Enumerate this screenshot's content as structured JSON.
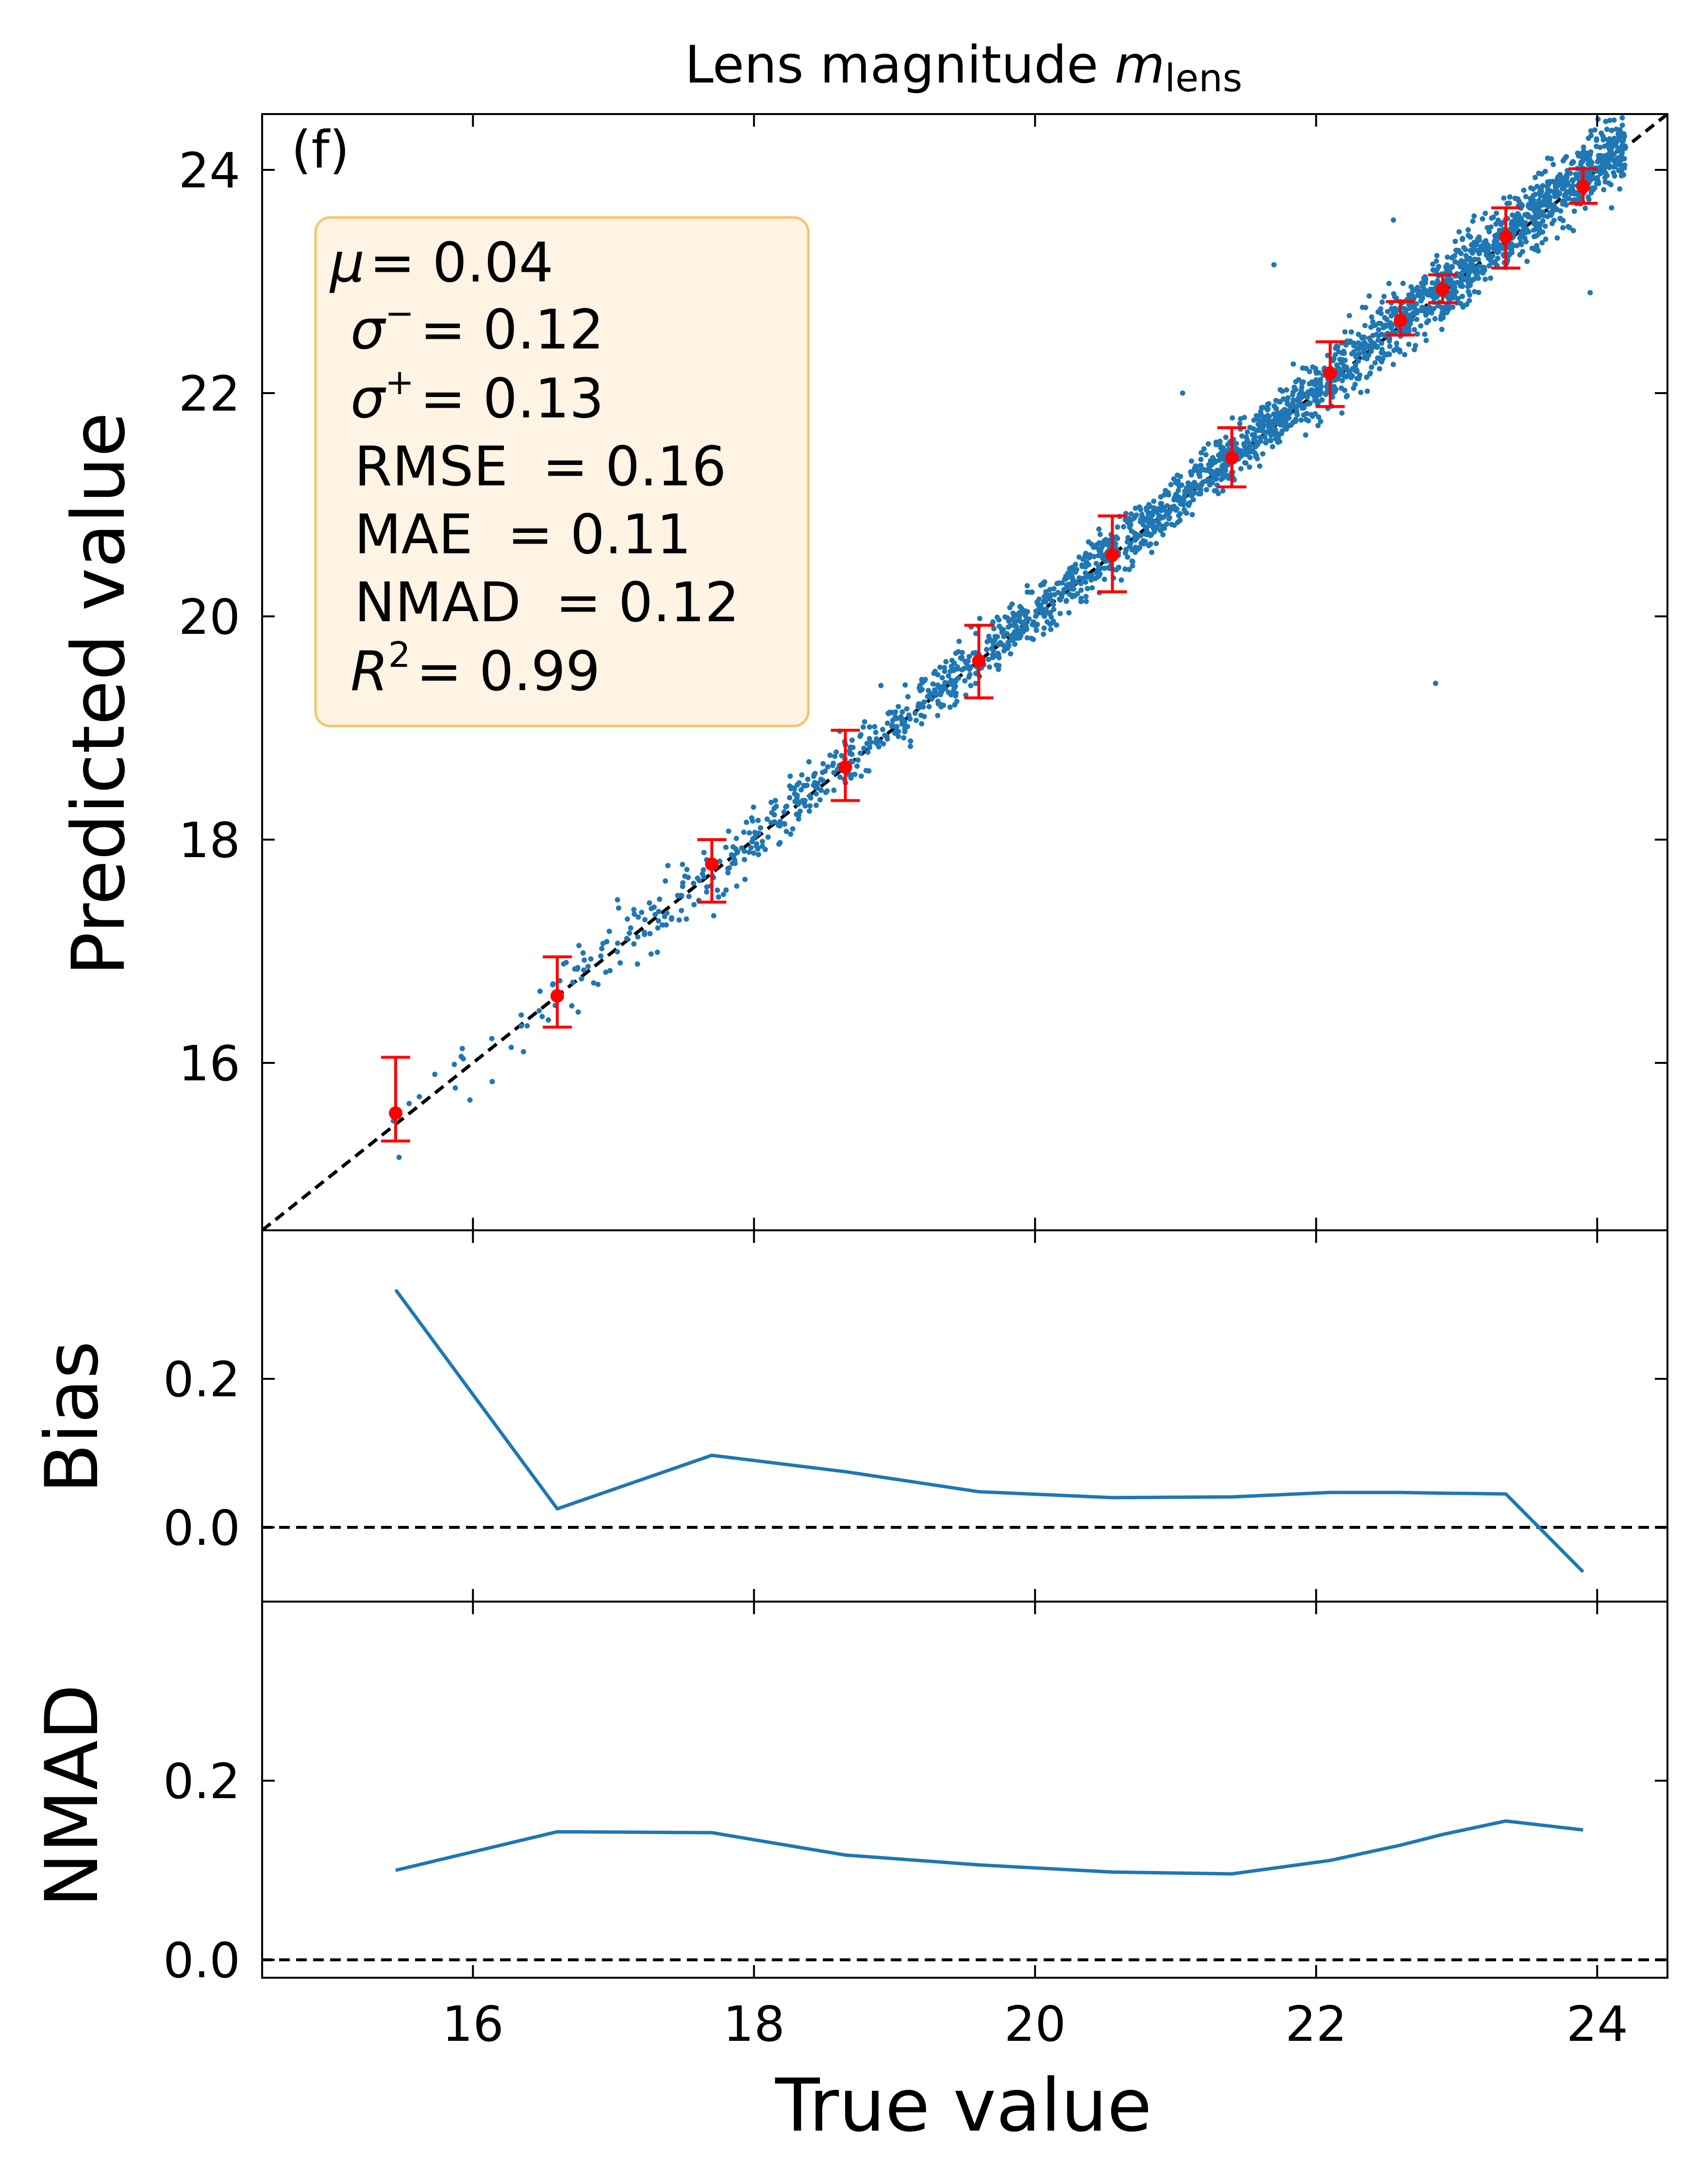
{
  "figure": {
    "title_main": "Lens magnitude ",
    "title_var": "m",
    "title_sub": "lens",
    "panel_tag": "(f)",
    "xlabel": "True value"
  },
  "colors": {
    "scatter": "#1f77b4",
    "binned": "#ff0000",
    "line": "#1f77b4",
    "reference": "#000000",
    "stats_box_fill": "#fff3e3",
    "stats_box_edge": "#f5c46a"
  },
  "stats": {
    "mu_label": "μ",
    "mu_value": "= 0.04",
    "sigma_minus_label": "σ",
    "sigma_minus_sup": "−",
    "sigma_minus_value": "= 0.12",
    "sigma_plus_label": "σ",
    "sigma_plus_sup": "+",
    "sigma_plus_value": "= 0.13",
    "rmse": "RMSE  = 0.16",
    "mae": "MAE  = 0.11",
    "nmad": "NMAD  = 0.12",
    "r2_label": "R",
    "r2_sup": "2",
    "r2_value": "= 0.99"
  },
  "chart_data": [
    {
      "type": "scatter",
      "title": "Lens magnitude m_lens",
      "xlabel": "True value",
      "ylabel": "Predicted value",
      "xlim": [
        14.5,
        24.5
      ],
      "ylim": [
        14.5,
        24.5
      ],
      "xticks": [
        16,
        18,
        20,
        22,
        24
      ],
      "yticks": [
        16,
        18,
        20,
        22,
        24
      ],
      "reference_line": "y = x (dashed)",
      "scatter_density": {
        "x_range": [
          15.3,
          24.2
        ],
        "scatter_width": 0.12,
        "outliers": [
          [
            22.85,
            19.4
          ],
          [
            22.55,
            23.55
          ],
          [
            21.05,
            22.0
          ],
          [
            23.95,
            22.9
          ],
          [
            19.7,
            19.95
          ],
          [
            21.7,
            23.15
          ]
        ]
      },
      "binned": {
        "x": [
          15.45,
          16.6,
          17.7,
          18.65,
          19.6,
          20.55,
          21.4,
          22.1,
          22.6,
          22.9,
          23.35,
          23.9
        ],
        "y": [
          15.55,
          16.6,
          17.78,
          18.65,
          19.6,
          20.55,
          21.42,
          22.18,
          22.65,
          22.93,
          23.4,
          23.85
        ],
        "err_low": [
          0.25,
          0.28,
          0.34,
          0.3,
          0.33,
          0.33,
          0.26,
          0.3,
          0.13,
          0.12,
          0.28,
          0.15
        ],
        "err_high": [
          0.5,
          0.35,
          0.22,
          0.33,
          0.32,
          0.35,
          0.27,
          0.28,
          0.17,
          0.13,
          0.26,
          0.16
        ]
      }
    },
    {
      "type": "line",
      "ylabel": "Bias",
      "xlim": [
        14.5,
        24.5
      ],
      "ylim": [
        -0.1,
        0.4
      ],
      "yticks": [
        0.0,
        0.2
      ],
      "ytick_labels": [
        "0.0",
        "0.2"
      ],
      "reference_line": "y = 0 (dashed)",
      "x": [
        15.45,
        16.6,
        17.7,
        18.65,
        19.6,
        20.55,
        21.4,
        22.1,
        22.6,
        22.9,
        23.35,
        23.9
      ],
      "y": [
        0.32,
        0.025,
        0.097,
        0.075,
        0.048,
        0.04,
        0.041,
        0.047,
        0.047,
        0.046,
        0.045,
        -0.06
      ]
    },
    {
      "type": "line",
      "ylabel": "NMAD",
      "xlabel": "True value",
      "xlim": [
        14.5,
        24.5
      ],
      "ylim": [
        -0.02,
        0.4
      ],
      "xticks": [
        16,
        18,
        20,
        22,
        24
      ],
      "yticks": [
        0.0,
        0.2
      ],
      "ytick_labels": [
        "0.0",
        "0.2"
      ],
      "reference_line": "y = 0 (dashed)",
      "x": [
        15.45,
        16.6,
        17.7,
        18.65,
        19.6,
        20.55,
        21.4,
        22.1,
        22.6,
        22.9,
        23.35,
        23.9
      ],
      "y": [
        0.1,
        0.143,
        0.142,
        0.117,
        0.106,
        0.098,
        0.096,
        0.111,
        0.128,
        0.14,
        0.155,
        0.145
      ]
    }
  ]
}
